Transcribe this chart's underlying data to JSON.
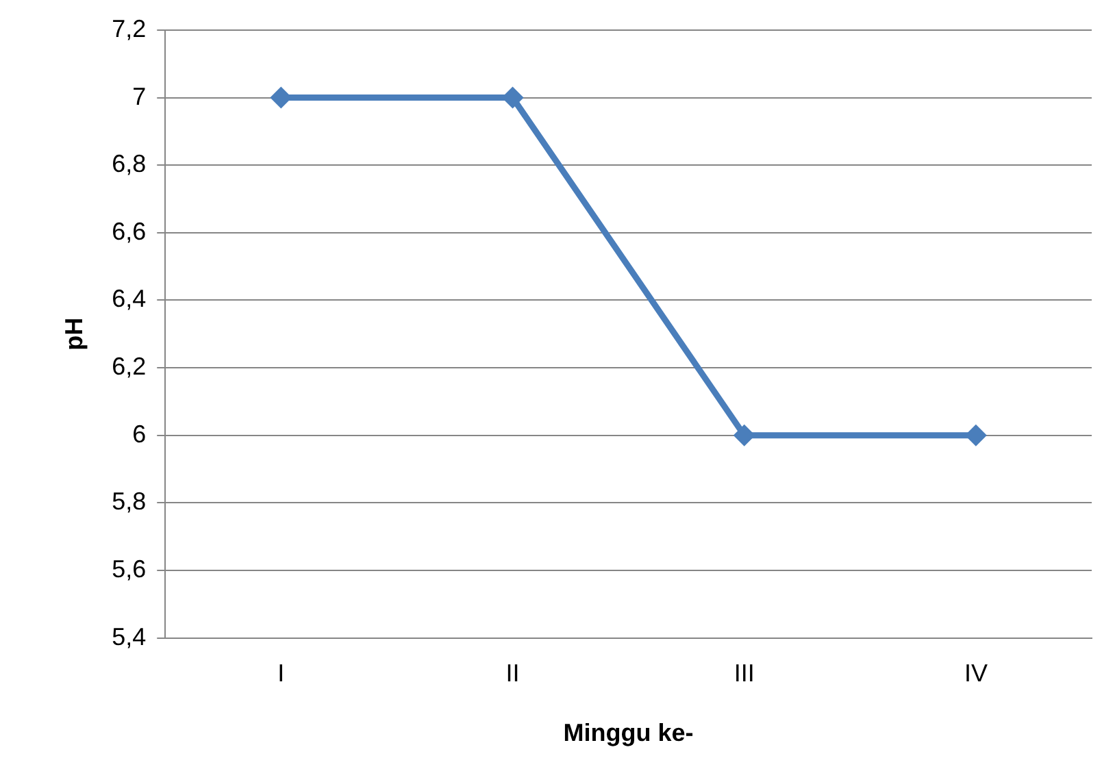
{
  "chart_data": {
    "type": "line",
    "xlabel": "Minggu ke-",
    "ylabel": "pH",
    "categories": [
      "I",
      "II",
      "III",
      "IV"
    ],
    "series": [
      {
        "color": "#4a7ebb",
        "values": [
          7,
          7,
          6,
          6
        ]
      }
    ],
    "ylim": [
      5.4,
      7.2
    ],
    "yticks": [
      {
        "value": 5.4,
        "label": "5,4"
      },
      {
        "value": 5.6,
        "label": "5,6"
      },
      {
        "value": 5.8,
        "label": "5,8"
      },
      6,
      {
        "value": 6.2,
        "label": "6,2"
      },
      {
        "value": 6.4,
        "label": "6,4"
      },
      {
        "value": 6.6,
        "label": "6,6"
      },
      {
        "value": 6.8,
        "label": "6,8"
      },
      7,
      {
        "value": 7.2,
        "label": "7,2"
      }
    ],
    "grid": "y",
    "legend": false,
    "marker": "diamond",
    "line_style": "solid"
  }
}
